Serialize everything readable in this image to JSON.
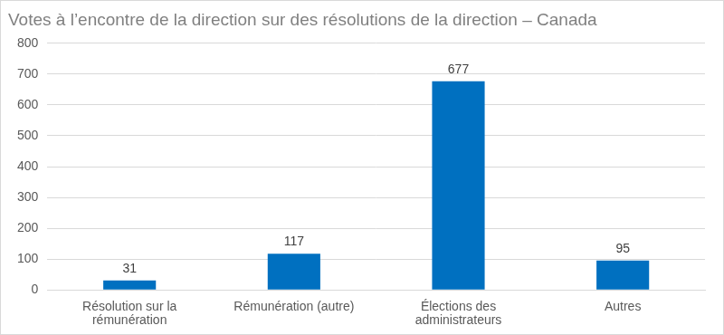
{
  "chart_data": {
    "type": "bar",
    "title": "Votes à l’encontre de la direction sur des résolutions de la direction – Canada",
    "categories": [
      "Résolution sur la rémunération",
      "Rémunération (autre)",
      "Élections des administrateurs",
      "Autres"
    ],
    "values": [
      31,
      117,
      677,
      95
    ],
    "color": "#0070c0",
    "ylim": [
      0,
      800
    ],
    "yticks": [
      0,
      100,
      200,
      300,
      400,
      500,
      600,
      700,
      800
    ],
    "grid": true,
    "data_labels": true
  }
}
